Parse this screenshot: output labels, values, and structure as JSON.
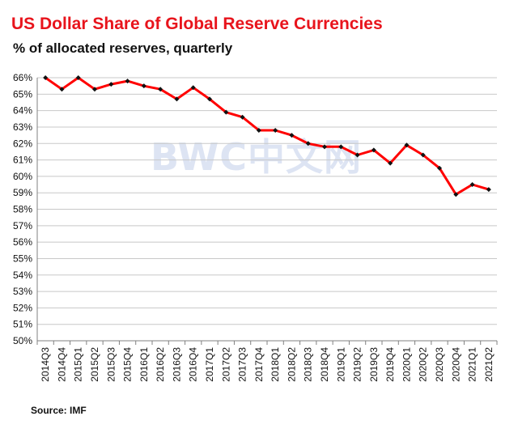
{
  "chart_data": {
    "type": "line",
    "title": "US Dollar Share of Global  Reserve Currencies",
    "subtitle": "% of allocated reserves, quarterly",
    "source": "Source: IMF",
    "watermark": "BWC中文网",
    "ylim": [
      50,
      66
    ],
    "y_ticks": [
      "50%",
      "51%",
      "52%",
      "53%",
      "54%",
      "55%",
      "56%",
      "57%",
      "58%",
      "59%",
      "60%",
      "61%",
      "62%",
      "63%",
      "64%",
      "65%",
      "66%"
    ],
    "grid": true,
    "line_color": "#ff0000",
    "marker_color": "#111111",
    "categories": [
      "2014Q3",
      "2014Q4",
      "2015Q1",
      "2015Q2",
      "2015Q3",
      "2015Q4",
      "2016Q1",
      "2016Q2",
      "2016Q3",
      "2016Q4",
      "2017Q1",
      "2017Q2",
      "2017Q3",
      "2017Q4",
      "2018Q1",
      "2018Q2",
      "2018Q3",
      "2018Q4",
      "2019Q1",
      "2019Q2",
      "2019Q3",
      "2019Q4",
      "2020Q1",
      "2020Q2",
      "2020Q3",
      "2020Q4",
      "2021Q1",
      "2021Q2"
    ],
    "values": [
      66.0,
      65.3,
      66.0,
      65.3,
      65.6,
      65.8,
      65.5,
      65.3,
      64.7,
      65.4,
      64.7,
      63.9,
      63.6,
      62.8,
      62.8,
      62.5,
      62.0,
      61.8,
      61.8,
      61.3,
      61.6,
      60.8,
      61.9,
      61.3,
      60.5,
      58.9,
      59.5,
      59.2
    ]
  }
}
